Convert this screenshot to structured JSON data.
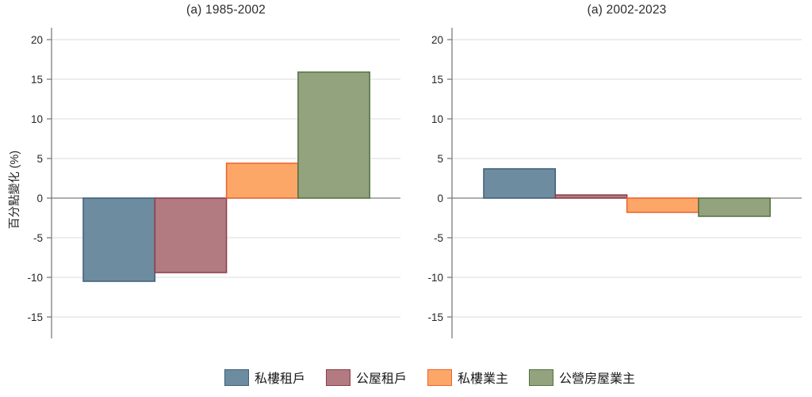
{
  "chart_data": [
    {
      "type": "bar",
      "title": "(a) 1985-2002",
      "categories": [
        "私樓租戶",
        "公屋租戶",
        "私樓業主",
        "公營房屋業主"
      ],
      "values": [
        -10.5,
        -9.4,
        4.4,
        15.9
      ],
      "xlabel": "",
      "ylabel": "百分點變化 (%)",
      "yticks": [
        20,
        15,
        10,
        5,
        0,
        -5,
        -10,
        -15
      ],
      "ylim": [
        -17.7,
        21.5
      ],
      "grid": true,
      "legend_position": "bottom"
    },
    {
      "type": "bar",
      "title": "(a) 2002-2023",
      "categories": [
        "私樓租戶",
        "公屋租戶",
        "私樓業主",
        "公營房屋業主"
      ],
      "values": [
        3.7,
        0.4,
        -1.8,
        -2.3
      ],
      "xlabel": "",
      "ylabel": "百分點變化 (%)",
      "yticks": [
        20,
        15,
        10,
        5,
        0,
        -5,
        -10,
        -15
      ],
      "ylim": [
        -17.7,
        21.5
      ],
      "grid": true,
      "legend_position": "bottom"
    }
  ],
  "legend": {
    "entries": [
      {
        "label": "私樓租戶",
        "fill": "#6D8CA0",
        "stroke": "#3F5E79"
      },
      {
        "label": "公屋租戶",
        "fill": "#B27A81",
        "stroke": "#8E3B48"
      },
      {
        "label": "私樓業主",
        "fill": "#FCA768",
        "stroke": "#EE6030"
      },
      {
        "label": "公營房屋業主",
        "fill": "#92A37D",
        "stroke": "#557041"
      }
    ]
  },
  "style": {
    "background": "#FFFFFF",
    "grid_color": "#E2E2E2",
    "zero_line_color": "#7E7E7E",
    "spine_color": "#7E7E7E",
    "tick_label_color": "#262626",
    "title_color": "#2B2B2B"
  }
}
